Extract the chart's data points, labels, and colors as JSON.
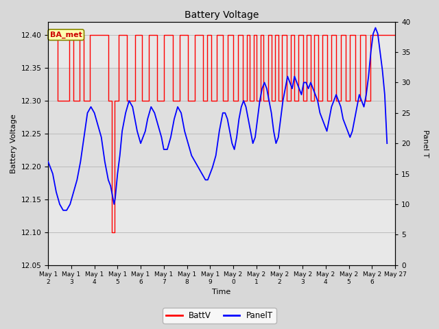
{
  "title": "Battery Voltage",
  "xlabel": "Time",
  "ylabel_left": "Battery Voltage",
  "ylabel_right": "Panel T",
  "annotation": "BA_met",
  "xlim_days": [
    12,
    27
  ],
  "ylim_left": [
    12.05,
    12.42
  ],
  "ylim_right": [
    0,
    40
  ],
  "yticks_left": [
    12.05,
    12.1,
    12.15,
    12.2,
    12.25,
    12.3,
    12.35,
    12.4
  ],
  "yticks_right": [
    0,
    5,
    10,
    15,
    20,
    25,
    30,
    35,
    40
  ],
  "bg_color": "#d8d8d8",
  "plot_bg_outer": "#d0d0d0",
  "plot_bg_inner": "#e8e8e8",
  "batt_color": "red",
  "panel_color": "blue",
  "batt_data": [
    [
      12,
      12.4
    ],
    [
      12.42,
      12.4
    ],
    [
      12.42,
      12.3
    ],
    [
      12.9,
      12.3
    ],
    [
      12.9,
      12.4
    ],
    [
      13.1,
      12.4
    ],
    [
      13.1,
      12.3
    ],
    [
      13.35,
      12.3
    ],
    [
      13.35,
      12.4
    ],
    [
      13.55,
      12.4
    ],
    [
      13.55,
      12.3
    ],
    [
      13.8,
      12.3
    ],
    [
      13.8,
      12.4
    ],
    [
      14.6,
      12.4
    ],
    [
      14.6,
      12.3
    ],
    [
      14.75,
      12.3
    ],
    [
      14.75,
      12.1
    ],
    [
      14.88,
      12.1
    ],
    [
      14.88,
      12.3
    ],
    [
      15.05,
      12.3
    ],
    [
      15.05,
      12.4
    ],
    [
      15.4,
      12.4
    ],
    [
      15.4,
      12.3
    ],
    [
      15.75,
      12.3
    ],
    [
      15.75,
      12.4
    ],
    [
      16.05,
      12.4
    ],
    [
      16.05,
      12.3
    ],
    [
      16.35,
      12.3
    ],
    [
      16.35,
      12.4
    ],
    [
      16.7,
      12.4
    ],
    [
      16.7,
      12.3
    ],
    [
      17.0,
      12.3
    ],
    [
      17.0,
      12.4
    ],
    [
      17.4,
      12.4
    ],
    [
      17.4,
      12.3
    ],
    [
      17.7,
      12.3
    ],
    [
      17.7,
      12.4
    ],
    [
      18.05,
      12.4
    ],
    [
      18.05,
      12.3
    ],
    [
      18.35,
      12.3
    ],
    [
      18.35,
      12.4
    ],
    [
      18.7,
      12.4
    ],
    [
      18.7,
      12.3
    ],
    [
      18.88,
      12.3
    ],
    [
      18.88,
      12.4
    ],
    [
      19.05,
      12.4
    ],
    [
      19.05,
      12.3
    ],
    [
      19.3,
      12.3
    ],
    [
      19.3,
      12.4
    ],
    [
      19.55,
      12.4
    ],
    [
      19.55,
      12.3
    ],
    [
      19.75,
      12.3
    ],
    [
      19.75,
      12.4
    ],
    [
      20.0,
      12.4
    ],
    [
      20.0,
      12.3
    ],
    [
      20.2,
      12.3
    ],
    [
      20.2,
      12.4
    ],
    [
      20.42,
      12.4
    ],
    [
      20.42,
      12.3
    ],
    [
      20.58,
      12.3
    ],
    [
      20.58,
      12.4
    ],
    [
      20.72,
      12.4
    ],
    [
      20.72,
      12.3
    ],
    [
      20.88,
      12.3
    ],
    [
      20.88,
      12.4
    ],
    [
      21.02,
      12.4
    ],
    [
      21.02,
      12.3
    ],
    [
      21.18,
      12.3
    ],
    [
      21.18,
      12.4
    ],
    [
      21.32,
      12.4
    ],
    [
      21.32,
      12.3
    ],
    [
      21.5,
      12.3
    ],
    [
      21.5,
      12.4
    ],
    [
      21.65,
      12.4
    ],
    [
      21.65,
      12.3
    ],
    [
      21.8,
      12.3
    ],
    [
      21.8,
      12.4
    ],
    [
      21.95,
      12.4
    ],
    [
      21.95,
      12.3
    ],
    [
      22.12,
      12.3
    ],
    [
      22.12,
      12.4
    ],
    [
      22.3,
      12.4
    ],
    [
      22.3,
      12.3
    ],
    [
      22.48,
      12.3
    ],
    [
      22.48,
      12.4
    ],
    [
      22.65,
      12.4
    ],
    [
      22.65,
      12.3
    ],
    [
      22.82,
      12.3
    ],
    [
      22.82,
      12.4
    ],
    [
      23.02,
      12.4
    ],
    [
      23.02,
      12.3
    ],
    [
      23.18,
      12.3
    ],
    [
      23.18,
      12.4
    ],
    [
      23.35,
      12.4
    ],
    [
      23.35,
      12.3
    ],
    [
      23.5,
      12.3
    ],
    [
      23.5,
      12.4
    ],
    [
      23.68,
      12.4
    ],
    [
      23.68,
      12.3
    ],
    [
      23.85,
      12.3
    ],
    [
      23.85,
      12.4
    ],
    [
      24.05,
      12.4
    ],
    [
      24.05,
      12.3
    ],
    [
      24.25,
      12.3
    ],
    [
      24.25,
      12.4
    ],
    [
      24.45,
      12.4
    ],
    [
      24.45,
      12.3
    ],
    [
      24.65,
      12.3
    ],
    [
      24.65,
      12.4
    ],
    [
      24.85,
      12.4
    ],
    [
      24.85,
      12.3
    ],
    [
      25.05,
      12.3
    ],
    [
      25.05,
      12.4
    ],
    [
      25.28,
      12.4
    ],
    [
      25.28,
      12.3
    ],
    [
      25.5,
      12.3
    ],
    [
      25.5,
      12.4
    ],
    [
      25.72,
      12.4
    ],
    [
      25.72,
      12.3
    ],
    [
      25.92,
      12.3
    ],
    [
      25.92,
      12.4
    ],
    [
      27.0,
      12.4
    ]
  ],
  "panel_data_x": [
    12.0,
    12.1,
    12.2,
    12.35,
    12.5,
    12.65,
    12.8,
    12.95,
    13.1,
    13.25,
    13.4,
    13.55,
    13.7,
    13.85,
    14.0,
    14.15,
    14.3,
    14.45,
    14.6,
    14.7,
    14.75,
    14.8,
    14.85,
    14.9,
    15.0,
    15.1,
    15.2,
    15.35,
    15.5,
    15.65,
    15.75,
    15.85,
    16.0,
    16.1,
    16.2,
    16.3,
    16.45,
    16.6,
    16.75,
    16.9,
    17.0,
    17.15,
    17.3,
    17.45,
    17.6,
    17.75,
    17.9,
    18.05,
    18.2,
    18.35,
    18.5,
    18.65,
    18.8,
    18.9,
    19.0,
    19.1,
    19.25,
    19.4,
    19.55,
    19.65,
    19.75,
    19.85,
    19.95,
    20.05,
    20.15,
    20.25,
    20.35,
    20.45,
    20.55,
    20.65,
    20.75,
    20.85,
    20.95,
    21.05,
    21.15,
    21.25,
    21.35,
    21.45,
    21.55,
    21.65,
    21.75,
    21.85,
    21.95,
    22.05,
    22.15,
    22.25,
    22.35,
    22.45,
    22.55,
    22.65,
    22.75,
    22.85,
    22.95,
    23.05,
    23.15,
    23.25,
    23.35,
    23.45,
    23.55,
    23.65,
    23.75,
    23.85,
    23.95,
    24.05,
    24.15,
    24.25,
    24.35,
    24.45,
    24.55,
    24.65,
    24.75,
    24.85,
    24.95,
    25.05,
    25.15,
    25.25,
    25.35,
    25.45,
    25.55,
    25.65,
    25.75,
    25.85,
    25.95,
    26.05,
    26.15,
    26.25,
    26.35,
    26.45,
    26.55,
    26.65
  ],
  "panel_data_y": [
    17,
    16,
    15,
    12,
    10,
    9,
    9,
    10,
    12,
    14,
    17,
    21,
    25,
    26,
    25,
    23,
    21,
    17,
    14,
    13,
    12,
    11,
    10,
    11,
    15,
    18,
    22,
    25,
    27,
    26,
    24,
    22,
    20,
    21,
    22,
    24,
    26,
    25,
    23,
    21,
    19,
    19,
    21,
    24,
    26,
    25,
    22,
    20,
    18,
    17,
    16,
    15,
    14,
    14,
    15,
    16,
    18,
    22,
    25,
    25,
    24,
    22,
    20,
    19,
    21,
    24,
    26,
    27,
    26,
    24,
    22,
    20,
    21,
    24,
    27,
    29,
    30,
    29,
    27,
    25,
    22,
    20,
    21,
    24,
    27,
    29,
    31,
    30,
    29,
    31,
    30,
    29,
    28,
    30,
    30,
    29,
    30,
    29,
    28,
    27,
    25,
    24,
    23,
    22,
    24,
    26,
    27,
    28,
    27,
    26,
    24,
    23,
    22,
    21,
    22,
    24,
    26,
    28,
    27,
    26,
    28,
    31,
    35,
    38,
    39,
    38,
    35,
    32,
    28,
    20
  ],
  "xticklabels": [
    "May 1\n2",
    "May 1\n3",
    "May 1\n4",
    "May 1\n5",
    "May 1\n6",
    "May 1\n7",
    "May 1\n8",
    "May 1\n9",
    "May 2\n0",
    "May 2\n1",
    "May 2\n2",
    "May 2\n3",
    "May 2\n4",
    "May 2\n5",
    "May 2\n6",
    "May 27"
  ],
  "xtick_positions": [
    12,
    13,
    14,
    15,
    16,
    17,
    18,
    19,
    20,
    21,
    22,
    23,
    24,
    25,
    26,
    27
  ]
}
